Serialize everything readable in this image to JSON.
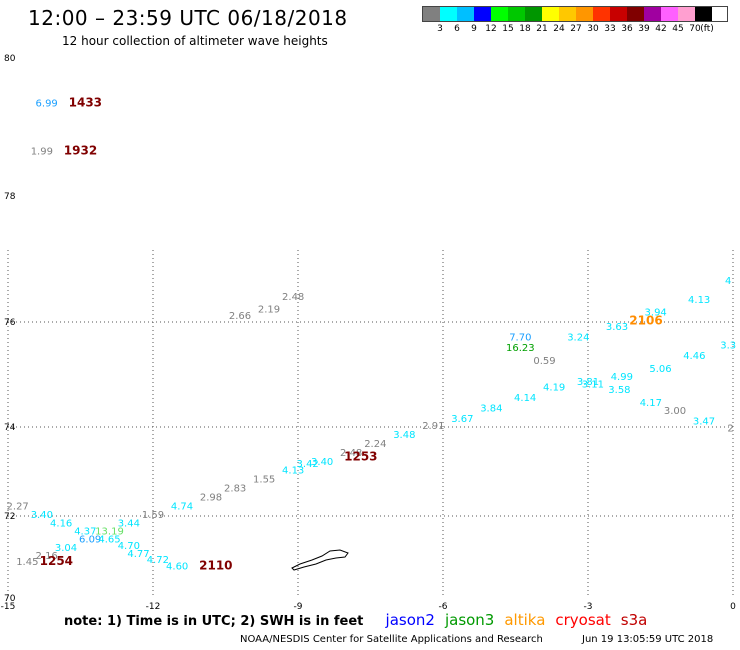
{
  "header": {
    "title": "12:00 – 23:59 UTC 06/18/2018",
    "subtitle": "12 hour collection of altimeter wave heights"
  },
  "colorbar": {
    "colors": [
      "#808080",
      "#00ffff",
      "#00bfff",
      "#0000ff",
      "#00ff00",
      "#00c800",
      "#009600",
      "#ffff00",
      "#ffc800",
      "#ff9600",
      "#ff3300",
      "#c80000",
      "#800000",
      "#a000a0",
      "#ff60ff",
      "#ff9fd0",
      "#000000"
    ],
    "labels": [
      "3",
      "6",
      "9",
      "12",
      "15",
      "18",
      "21",
      "24",
      "27",
      "30",
      "33",
      "36",
      "39",
      "42",
      "45",
      "70"
    ],
    "unit": "(ft)"
  },
  "map": {
    "lat_labels": [
      "80",
      "78",
      "76",
      "74",
      "72",
      "70"
    ],
    "lon_labels": [
      "-15",
      "-12",
      "-9",
      "-6",
      "-3",
      "0"
    ]
  },
  "chart_data": {
    "type": "scatter",
    "title": "12:00 – 23:59 UTC 06/18/2018",
    "subtitle": "12 hour collection of altimeter wave heights",
    "xlabel": "",
    "ylabel": "",
    "xlim": [
      -15,
      0
    ],
    "ylim": [
      70,
      80
    ],
    "x_ticks": [
      -15,
      -12,
      -9,
      -6,
      -3,
      0
    ],
    "y_ticks": [
      70,
      72,
      74,
      76,
      78,
      80
    ],
    "grid": true,
    "units": "ft",
    "swh_points": [
      {
        "lon": -14.2,
        "lat": 79.3,
        "value": "6.99",
        "color": "#1a9fff"
      },
      {
        "lon": -14.3,
        "lat": 78.6,
        "value": "1.99",
        "color": "#808080"
      },
      {
        "lon": -0.1,
        "lat": 76.6,
        "value": "4",
        "color": "#00e5ff"
      },
      {
        "lon": -0.7,
        "lat": 76.3,
        "value": "4.13",
        "color": "#00e5ff"
      },
      {
        "lon": -1.6,
        "lat": 76.1,
        "value": "3.94",
        "color": "#00e5ff"
      },
      {
        "lon": -2.4,
        "lat": 75.85,
        "value": "3.63",
        "color": "#00e5ff"
      },
      {
        "lon": -3.2,
        "lat": 75.65,
        "value": "3.24",
        "color": "#00e5ff"
      },
      {
        "lon": -0.1,
        "lat": 75.5,
        "value": "3.3",
        "color": "#00e5ff"
      },
      {
        "lon": -0.8,
        "lat": 75.3,
        "value": "4.46",
        "color": "#00e5ff"
      },
      {
        "lon": -1.5,
        "lat": 75.05,
        "value": "5.06",
        "color": "#00e5ff"
      },
      {
        "lon": -2.3,
        "lat": 74.9,
        "value": "4.99",
        "color": "#00e5ff"
      },
      {
        "lon": -3.0,
        "lat": 74.8,
        "value": "3.81",
        "color": "#00e5ff"
      },
      {
        "lon": -2.9,
        "lat": 74.75,
        "value": "3.11",
        "color": "#00e5ff"
      },
      {
        "lon": -2.35,
        "lat": 74.65,
        "value": "3.58",
        "color": "#00e5ff"
      },
      {
        "lon": -1.7,
        "lat": 74.4,
        "value": "4.17",
        "color": "#00e5ff"
      },
      {
        "lon": -1.2,
        "lat": 74.25,
        "value": "3.00",
        "color": "#808080"
      },
      {
        "lon": -0.6,
        "lat": 74.05,
        "value": "3.47",
        "color": "#00e5ff"
      },
      {
        "lon": -0.05,
        "lat": 73.9,
        "value": "2",
        "color": "#808080"
      },
      {
        "lon": -4.4,
        "lat": 75.65,
        "value": "7.70",
        "color": "#1a9fff"
      },
      {
        "lon": -4.4,
        "lat": 75.45,
        "value": "16.23",
        "color": "#00a000"
      },
      {
        "lon": -3.9,
        "lat": 75.2,
        "value": "0.59",
        "color": "#808080"
      },
      {
        "lon": -3.7,
        "lat": 74.7,
        "value": "4.19",
        "color": "#00e5ff"
      },
      {
        "lon": -4.3,
        "lat": 74.5,
        "value": "4.14",
        "color": "#00e5ff"
      },
      {
        "lon": -5.0,
        "lat": 74.3,
        "value": "3.84",
        "color": "#00e5ff"
      },
      {
        "lon": -5.6,
        "lat": 74.1,
        "value": "3.67",
        "color": "#00e5ff"
      },
      {
        "lon": -6.2,
        "lat": 73.95,
        "value": "2.91",
        "color": "#808080"
      },
      {
        "lon": -6.8,
        "lat": 73.75,
        "value": "3.48",
        "color": "#00e5ff"
      },
      {
        "lon": -7.4,
        "lat": 73.55,
        "value": "2.24",
        "color": "#808080"
      },
      {
        "lon": -7.9,
        "lat": 73.35,
        "value": "2.48",
        "color": "#808080"
      },
      {
        "lon": -8.5,
        "lat": 73.15,
        "value": "3.40",
        "color": "#00e5ff"
      },
      {
        "lon": -8.8,
        "lat": 73.1,
        "value": "3.42",
        "color": "#00e5ff"
      },
      {
        "lon": -9.1,
        "lat": 72.95,
        "value": "4.13",
        "color": "#00e5ff"
      },
      {
        "lon": -9.7,
        "lat": 72.75,
        "value": "1.55",
        "color": "#808080"
      },
      {
        "lon": -10.3,
        "lat": 72.55,
        "value": "2.83",
        "color": "#808080"
      },
      {
        "lon": -10.8,
        "lat": 72.35,
        "value": "2.98",
        "color": "#808080"
      },
      {
        "lon": -11.4,
        "lat": 72.15,
        "value": "4.74",
        "color": "#00e5ff"
      },
      {
        "lon": -12.0,
        "lat": 71.95,
        "value": "1.59",
        "color": "#808080"
      },
      {
        "lon": -12.5,
        "lat": 71.75,
        "value": "3.44",
        "color": "#00e5ff"
      },
      {
        "lon": -12.9,
        "lat": 71.55,
        "value": "13.19",
        "color": "#66e066"
      },
      {
        "lon": -13.3,
        "lat": 71.35,
        "value": "6.09",
        "color": "#1a9fff"
      },
      {
        "lon": -13.8,
        "lat": 71.15,
        "value": "3.04",
        "color": "#00e5ff"
      },
      {
        "lon": -14.2,
        "lat": 70.95,
        "value": "2.16",
        "color": "#808080"
      },
      {
        "lon": -14.6,
        "lat": 70.8,
        "value": "1.45",
        "color": "#808080"
      },
      {
        "lon": -9.1,
        "lat": 76.35,
        "value": "2.48",
        "color": "#808080"
      },
      {
        "lon": -9.6,
        "lat": 76.15,
        "value": "2.19",
        "color": "#808080"
      },
      {
        "lon": -10.2,
        "lat": 76.05,
        "value": "2.66",
        "color": "#808080"
      },
      {
        "lon": -14.8,
        "lat": 72.15,
        "value": "2.27",
        "color": "#808080"
      },
      {
        "lon": -14.3,
        "lat": 71.95,
        "value": "3.40",
        "color": "#00e5ff"
      },
      {
        "lon": -13.9,
        "lat": 71.75,
        "value": "4.16",
        "color": "#00e5ff"
      },
      {
        "lon": -13.4,
        "lat": 71.55,
        "value": "4.37",
        "color": "#00e5ff"
      },
      {
        "lon": -12.9,
        "lat": 71.35,
        "value": "4.65",
        "color": "#00e5ff"
      },
      {
        "lon": -12.5,
        "lat": 71.2,
        "value": "4.70",
        "color": "#00e5ff"
      },
      {
        "lon": -12.3,
        "lat": 71.0,
        "value": "4.77",
        "color": "#00e5ff"
      },
      {
        "lon": -11.9,
        "lat": 70.85,
        "value": "4.72",
        "color": "#00e5ff"
      },
      {
        "lon": -11.5,
        "lat": 70.7,
        "value": "4.60",
        "color": "#00e5ff"
      }
    ],
    "time_labels": [
      {
        "lon": -13.4,
        "lat": 79.3,
        "value": "1433",
        "color": "#800000"
      },
      {
        "lon": -13.5,
        "lat": 78.6,
        "value": "1932",
        "color": "#800000"
      },
      {
        "lon": -1.8,
        "lat": 75.95,
        "value": "2106",
        "color": "#ff8c00"
      },
      {
        "lon": -7.7,
        "lat": 73.25,
        "value": "1253",
        "color": "#800000"
      },
      {
        "lon": -14.0,
        "lat": 70.8,
        "value": "1254",
        "color": "#800000"
      },
      {
        "lon": -10.7,
        "lat": 70.7,
        "value": "2110",
        "color": "#800000"
      }
    ]
  },
  "legend": {
    "note": "note:  1) Time is in UTC;  2) SWH is in feet",
    "satellites": [
      {
        "name": "jason2",
        "color": "#0000ff"
      },
      {
        "name": "jason3",
        "color": "#009900"
      },
      {
        "name": "altika",
        "color": "#ff9900"
      },
      {
        "name": "cryosat",
        "color": "#ff0000"
      },
      {
        "name": "s3a",
        "color": "#c00000"
      }
    ]
  },
  "footer": {
    "credit": "NOAA/NESDIS Center for Satellite Applications and Research",
    "timestamp": "Jun 19 13:05:59 UTC 2018"
  }
}
